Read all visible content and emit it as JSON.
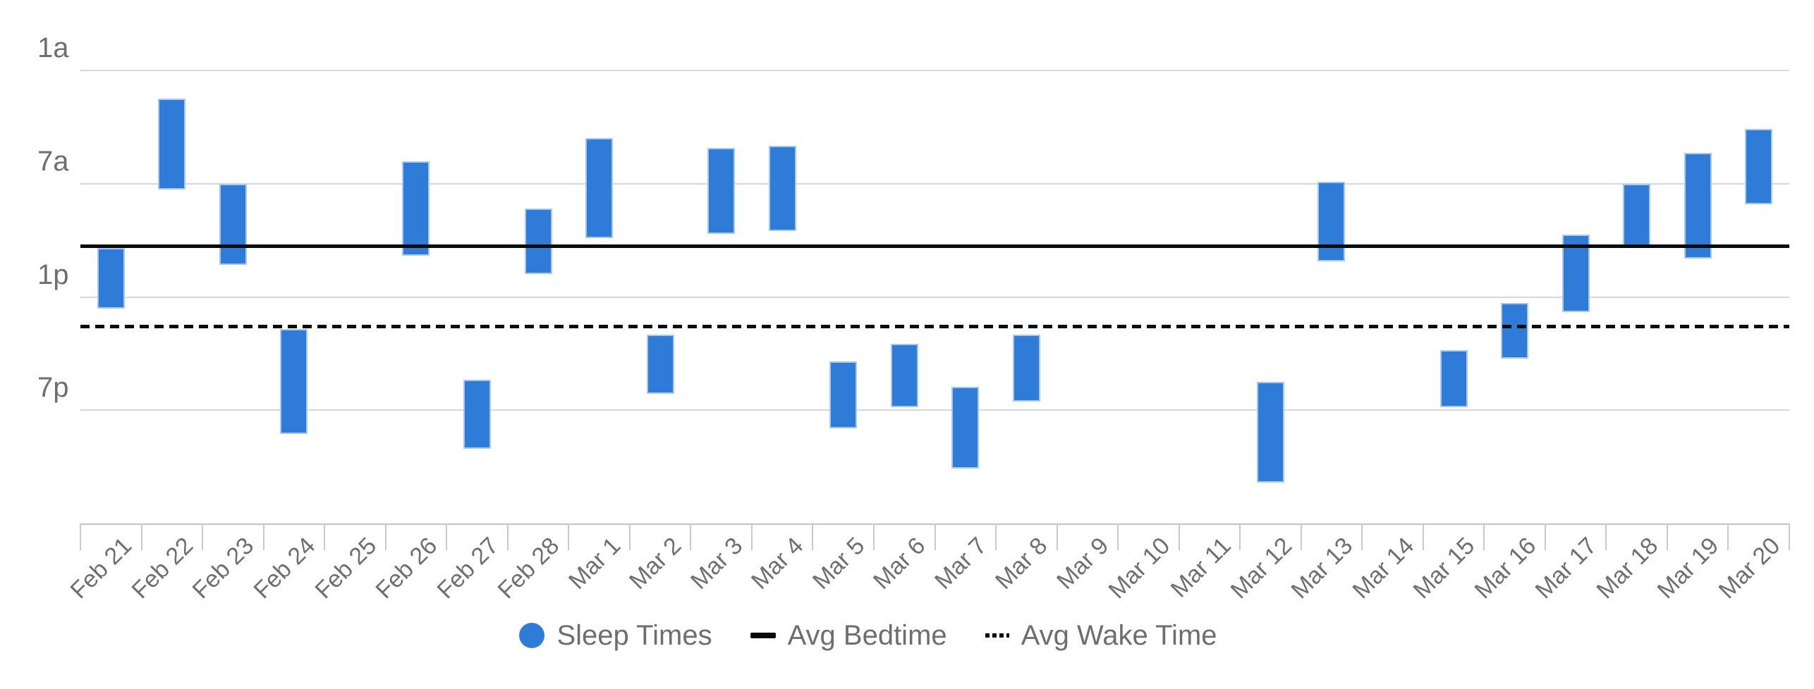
{
  "chart_data": {
    "type": "bar",
    "variant": "floating-range-bars",
    "title": "",
    "x_categories": [
      "Feb 21",
      "Feb 22",
      "Feb 23",
      "Feb 24",
      "Feb 25",
      "Feb 26",
      "Feb 27",
      "Feb 28",
      "Mar 1",
      "Mar 2",
      "Mar 3",
      "Mar 4",
      "Mar 5",
      "Mar 6",
      "Mar 7",
      "Mar 8",
      "Mar 9",
      "Mar 10",
      "Mar 11",
      "Mar 12",
      "Mar 13",
      "Mar 14",
      "Mar 15",
      "Mar 16",
      "Mar 17",
      "Mar 18",
      "Mar 19",
      "Mar 20"
    ],
    "y_axis": {
      "tick_labels": [
        "1a",
        "7a",
        "1p",
        "7p"
      ],
      "tick_hours": [
        1,
        7,
        13,
        19
      ],
      "top_hour": 1,
      "bottom_hour": 25,
      "direction": "time-of-day increases downward, 1a top to 1a next day at bottom",
      "grid": true
    },
    "sleep_times": [
      {
        "date": "Feb 21",
        "start": "10:25a",
        "end": "1:35p",
        "start_h": 10.4,
        "end_h": 13.6
      },
      {
        "date": "Feb 22",
        "start": "2:30a",
        "end": "7:20a",
        "start_h": 2.5,
        "end_h": 7.3
      },
      {
        "date": "Feb 23",
        "start": "7:00a",
        "end": "11:20a",
        "start_h": 7.0,
        "end_h": 11.3
      },
      {
        "date": "Feb 24",
        "start": "2:40p",
        "end": "8:15p",
        "start_h": 14.7,
        "end_h": 20.25
      },
      {
        "date": "Feb 25",
        "start": null,
        "end": null,
        "start_h": null,
        "end_h": null
      },
      {
        "date": "Feb 26",
        "start": "5:45a",
        "end": "10:45a",
        "start_h": 5.8,
        "end_h": 10.8
      },
      {
        "date": "Feb 27",
        "start": "5:25p",
        "end": "9:00p",
        "start_h": 17.4,
        "end_h": 21.05
      },
      {
        "date": "Feb 28",
        "start": "8:20a",
        "end": "11:50a",
        "start_h": 8.3,
        "end_h": 11.8
      },
      {
        "date": "Mar 1",
        "start": "4:35a",
        "end": "9:55a",
        "start_h": 4.6,
        "end_h": 9.9
      },
      {
        "date": "Mar 2",
        "start": "3:00p",
        "end": "6:10p",
        "start_h": 15.0,
        "end_h": 18.15
      },
      {
        "date": "Mar 3",
        "start": "5:05a",
        "end": "9:40a",
        "start_h": 5.1,
        "end_h": 9.65
      },
      {
        "date": "Mar 4",
        "start": "5:00a",
        "end": "9:30a",
        "start_h": 5.0,
        "end_h": 9.5
      },
      {
        "date": "Mar 5",
        "start": "4:25p",
        "end": "7:55p",
        "start_h": 16.4,
        "end_h": 19.95
      },
      {
        "date": "Mar 6",
        "start": "3:30p",
        "end": "6:50p",
        "start_h": 15.5,
        "end_h": 18.85
      },
      {
        "date": "Mar 7",
        "start": "5:45p",
        "end": "10:05p",
        "start_h": 17.75,
        "end_h": 22.1
      },
      {
        "date": "Mar 8",
        "start": "3:00p",
        "end": "6:35p",
        "start_h": 15.0,
        "end_h": 18.55
      },
      {
        "date": "Mar 9",
        "start": null,
        "end": null,
        "start_h": null,
        "end_h": null
      },
      {
        "date": "Mar 10",
        "start": null,
        "end": null,
        "start_h": null,
        "end_h": null
      },
      {
        "date": "Mar 11",
        "start": null,
        "end": null,
        "start_h": null,
        "end_h": null
      },
      {
        "date": "Mar 12",
        "start": "5:30p",
        "end": "10:50p",
        "start_h": 17.5,
        "end_h": 22.85
      },
      {
        "date": "Mar 13",
        "start": "6:55a",
        "end": "11:05a",
        "start_h": 6.9,
        "end_h": 11.1
      },
      {
        "date": "Mar 14",
        "start": null,
        "end": null,
        "start_h": null,
        "end_h": null
      },
      {
        "date": "Mar 15",
        "start": "3:50p",
        "end": "6:50p",
        "start_h": 15.8,
        "end_h": 18.85
      },
      {
        "date": "Mar 16",
        "start": "1:20p",
        "end": "4:15p",
        "start_h": 13.3,
        "end_h": 16.25
      },
      {
        "date": "Mar 17",
        "start": "9:40a",
        "end": "1:50p",
        "start_h": 9.7,
        "end_h": 13.8
      },
      {
        "date": "Mar 18",
        "start": "7:00a",
        "end": "10:25a",
        "start_h": 7.0,
        "end_h": 10.4
      },
      {
        "date": "Mar 19",
        "start": "5:20a",
        "end": "10:55a",
        "start_h": 5.35,
        "end_h": 10.95
      },
      {
        "date": "Mar 20",
        "start": "4:05a",
        "end": "8:05a",
        "start_h": 4.1,
        "end_h": 8.1
      }
    ],
    "reference_lines": [
      {
        "name": "Avg Bedtime",
        "style": "solid",
        "value": "10:20a",
        "value_h": 10.3
      },
      {
        "name": "Avg Wake Time",
        "style": "dotted",
        "value": "2:30p",
        "value_h": 14.55
      }
    ],
    "legend": {
      "position": "bottom-center",
      "items": [
        {
          "label": "Sleep Times",
          "marker": "circle"
        },
        {
          "label": "Avg Bedtime",
          "marker": "solid-line"
        },
        {
          "label": "Avg Wake Time",
          "marker": "dotted-line"
        }
      ]
    }
  },
  "colors": {
    "bar_fill": "#2f7cd8",
    "bar_border": "#aac7ee",
    "reference_line": "#0a0a0a",
    "gridline": "#d7d7d7",
    "axis_line": "#c3c3c3",
    "label_text": "#6e6e6e",
    "background": "#ffffff"
  }
}
